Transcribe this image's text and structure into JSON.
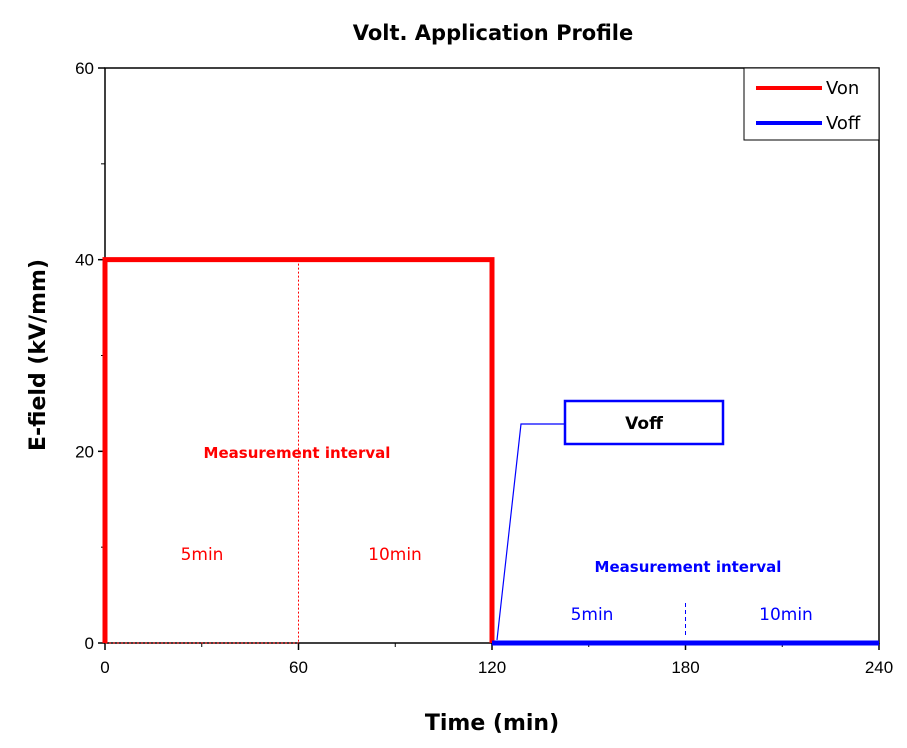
{
  "chart_data": {
    "type": "line",
    "title": "Volt. Application Profile",
    "xlabel": "Time (min)",
    "ylabel": "E-field (kV/mm)",
    "xlim": [
      0,
      240
    ],
    "ylim": [
      0,
      60
    ],
    "xticks": [
      0,
      60,
      120,
      180,
      240
    ],
    "yticks": [
      0,
      20,
      40,
      60
    ],
    "grid": false,
    "legend_position": "top-right",
    "series": [
      {
        "name": "Von",
        "color": "#ff0000",
        "x": [
          0,
          0,
          120,
          120
        ],
        "y": [
          0,
          40,
          40,
          0
        ]
      },
      {
        "name": "Voff",
        "color": "#0000ff",
        "x": [
          120,
          240
        ],
        "y": [
          0,
          0
        ]
      }
    ],
    "annotations": {
      "von_interval_title": "Measurement interval",
      "von_5min": "5min",
      "von_10min": "10min",
      "voff_interval_title": "Measurement interval",
      "voff_5min": "5min",
      "voff_10min": "10min",
      "callout_label": "Voff",
      "von_divider_x": 60,
      "voff_divider_x": 180
    }
  }
}
